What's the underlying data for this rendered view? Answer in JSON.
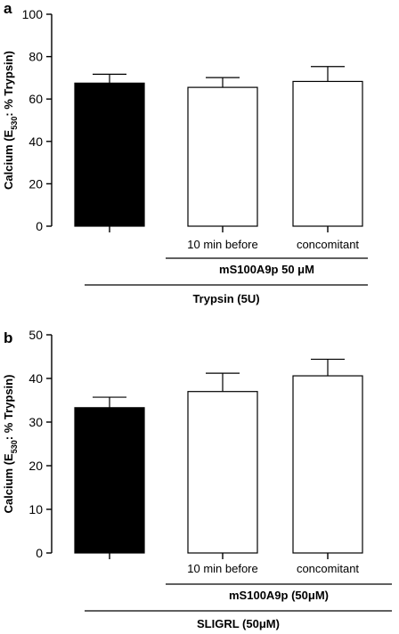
{
  "chart_data": [
    {
      "type": "bar",
      "panel": "a",
      "ylabel_main": "Calcium (E",
      "ylabel_sub": "530",
      "ylabel_tail": ": % Trypsin)",
      "ylim": [
        0,
        100
      ],
      "yticks": [
        0,
        20,
        40,
        60,
        80,
        100
      ],
      "categories": [
        "",
        "10 min before",
        "concomitant"
      ],
      "values": [
        67.5,
        65.5,
        68.3
      ],
      "errors": [
        4.2,
        4.6,
        7.0
      ],
      "fills": [
        "#000000",
        "#ffffff",
        "#ffffff"
      ],
      "group_label_1": "mS100A9p 50 μM",
      "group_label_2": "Trypsin (5U)"
    },
    {
      "type": "bar",
      "panel": "b",
      "ylabel_main": "Calcium (E",
      "ylabel_sub": "530",
      "ylabel_tail": ": % Trypsin)",
      "ylim": [
        0,
        50
      ],
      "yticks": [
        0,
        10,
        20,
        30,
        40,
        50
      ],
      "categories": [
        "",
        "10 min before",
        "concomitant"
      ],
      "values": [
        33.3,
        37.0,
        40.6
      ],
      "errors": [
        2.4,
        4.2,
        3.8
      ],
      "fills": [
        "#000000",
        "#ffffff",
        "#ffffff"
      ],
      "group_label_1": "mS100A9p (50μM)",
      "group_label_2": "SLIGRL (50μM)"
    }
  ]
}
